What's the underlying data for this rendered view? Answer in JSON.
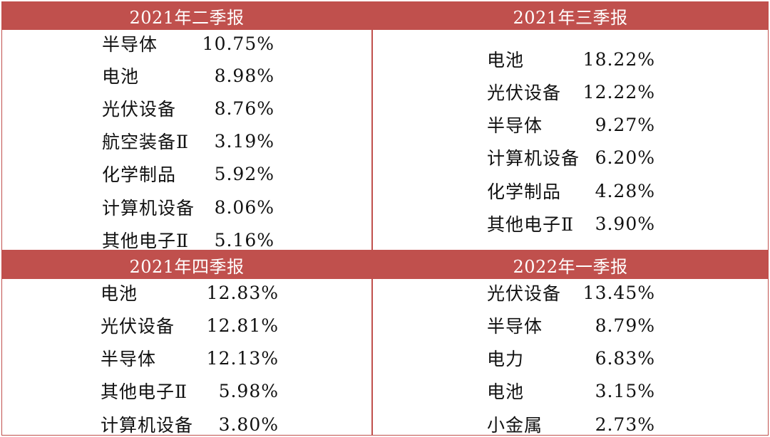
{
  "panels": [
    {
      "title": "2021年二季报",
      "rows": [
        {
          "name": "半导体",
          "value": "10.75%"
        },
        {
          "name": "电池",
          "value": "8.98%"
        },
        {
          "name": "光伏设备",
          "value": "8.76%"
        },
        {
          "name": "航空装备Ⅱ",
          "value": "3.19%"
        },
        {
          "name": "化学制品",
          "value": "5.92%"
        },
        {
          "name": "计算机设备",
          "value": "8.06%"
        },
        {
          "name": "其他电子Ⅱ",
          "value": "5.16%"
        }
      ]
    },
    {
      "title": "2021年三季报",
      "rows": [
        {
          "name": "电池",
          "value": "18.22%"
        },
        {
          "name": "光伏设备",
          "value": "12.22%"
        },
        {
          "name": "半导体",
          "value": "9.27%"
        },
        {
          "name": "计算机设备",
          "value": "6.20%"
        },
        {
          "name": "化学制品",
          "value": "4.28%"
        },
        {
          "name": "其他电子Ⅱ",
          "value": "3.90%"
        }
      ]
    },
    {
      "title": "2021年四季报",
      "rows": [
        {
          "name": "电池",
          "value": "12.83%"
        },
        {
          "name": "光伏设备",
          "value": "12.81%"
        },
        {
          "name": "半导体",
          "value": "12.13%"
        },
        {
          "name": "其他电子Ⅱ",
          "value": "5.98%"
        },
        {
          "name": "计算机设备",
          "value": "3.80%"
        }
      ]
    },
    {
      "title": "2022年一季报",
      "rows": [
        {
          "name": "光伏设备",
          "value": "13.45%"
        },
        {
          "name": "半导体",
          "value": "8.79%"
        },
        {
          "name": "电力",
          "value": "6.83%"
        },
        {
          "name": "电池",
          "value": "3.15%"
        },
        {
          "name": "小金属",
          "value": "2.73%"
        }
      ]
    }
  ],
  "colors": {
    "header_bg": "#c0504d",
    "header_text": "#ffffff",
    "body_text": "#111111"
  }
}
